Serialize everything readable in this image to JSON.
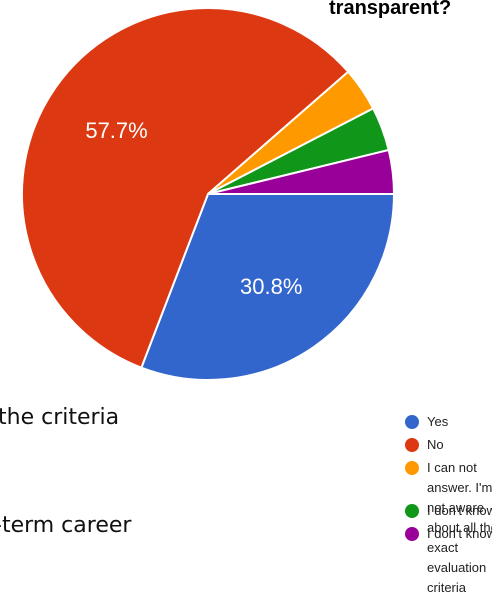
{
  "heading_fragment": "transparent?",
  "left_text": [
    "the criteria",
    "-term career"
  ],
  "chart_data": {
    "type": "pie",
    "title": "",
    "slices": [
      {
        "label": "Yes",
        "value": 30.8,
        "color": "#3366cc",
        "data_label": "30.8%"
      },
      {
        "label": "No",
        "value": 57.7,
        "color": "#dc3912",
        "data_label": "57.7%"
      },
      {
        "label": "I can not answer. I'm not aware about all the exact evaluation criteria",
        "value": 3.8,
        "color": "#ff9900",
        "data_label": ""
      },
      {
        "label": "I don't know",
        "value": 3.8,
        "color": "#109618",
        "data_label": ""
      },
      {
        "label": "I don't know",
        "value": 3.8,
        "color": "#990099",
        "data_label": ""
      }
    ],
    "legend_position": "right"
  }
}
